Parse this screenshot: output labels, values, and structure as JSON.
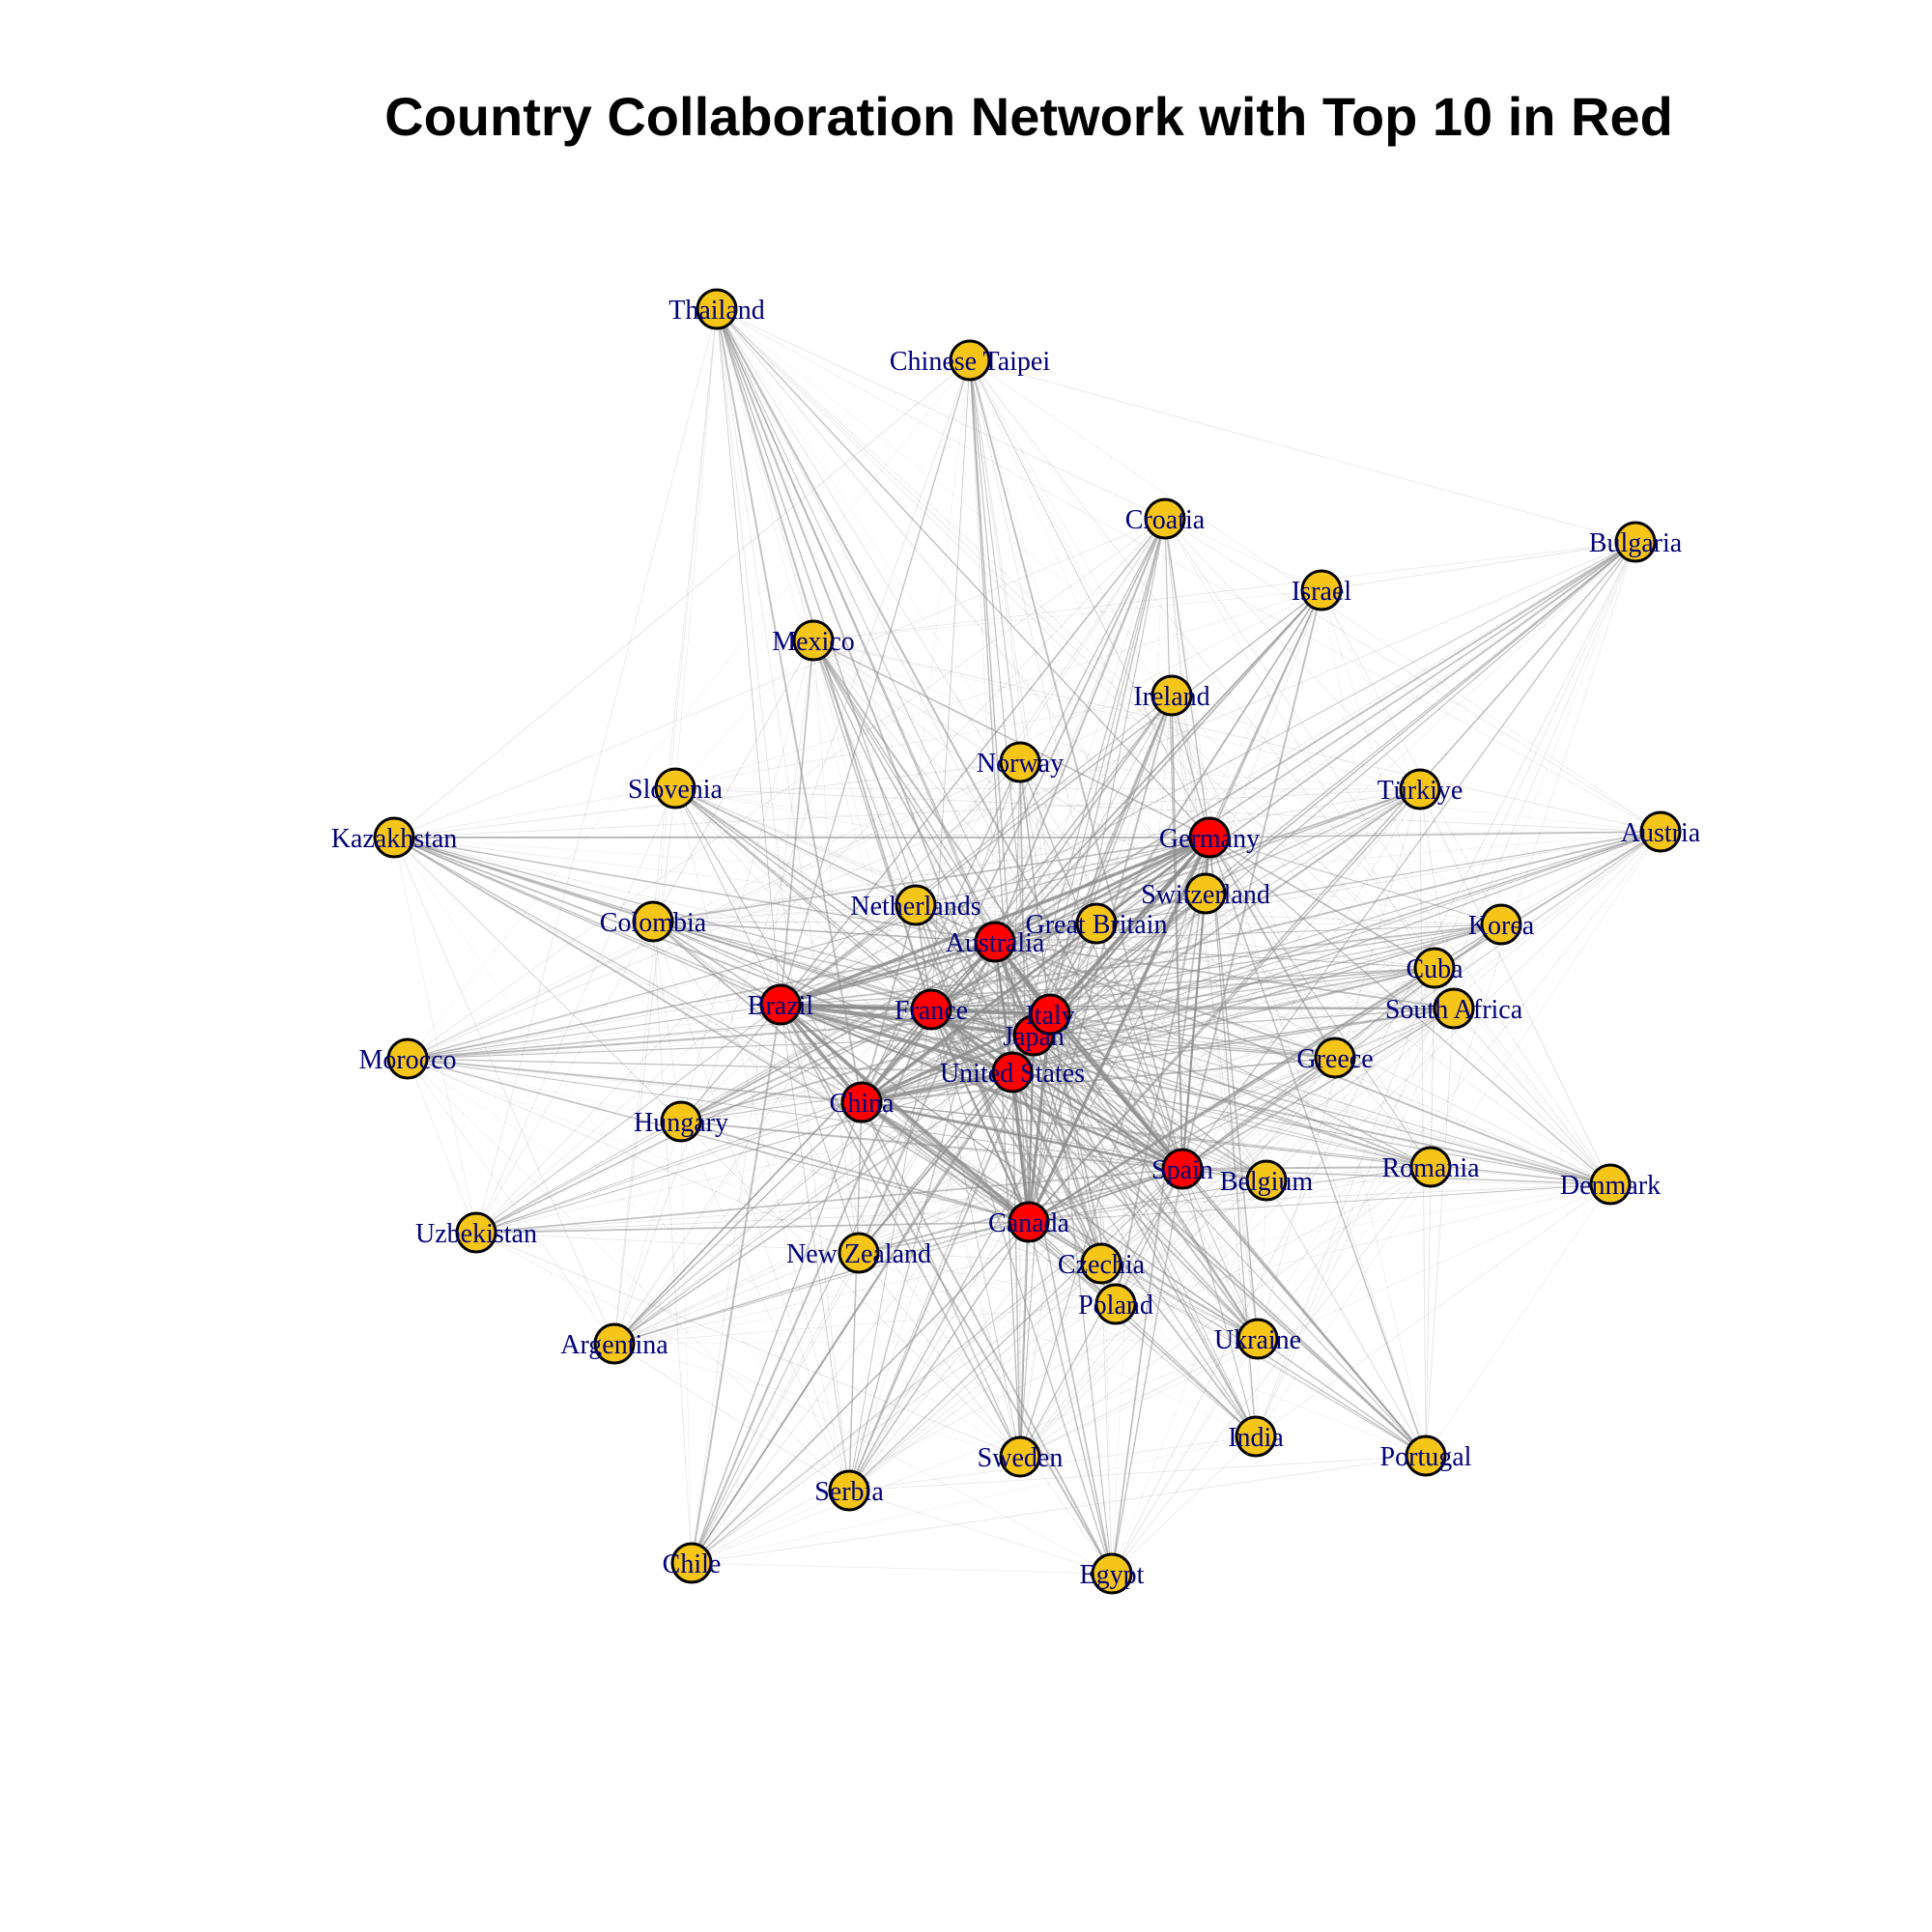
{
  "title": "Country Collaboration Network with Top 10 in Red",
  "colors": {
    "top10_node": "#ff0000",
    "other_node": "#f5c518",
    "node_border": "#000000",
    "edge": "#8c8c8c",
    "label": "#00007a"
  },
  "top10": [
    "United States",
    "China",
    "Italy",
    "Germany",
    "France",
    "Spain",
    "Japan",
    "Canada",
    "Brazil",
    "Australia"
  ],
  "nodes": [
    {
      "id": "United States",
      "label": "United States"
    },
    {
      "id": "Japan",
      "label": "Japan"
    },
    {
      "id": "Italy",
      "label": "Italy"
    },
    {
      "id": "France",
      "label": "France"
    },
    {
      "id": "Brazil",
      "label": "Brazil"
    },
    {
      "id": "China",
      "label": "China"
    },
    {
      "id": "Australia",
      "label": "Australia"
    },
    {
      "id": "Germany",
      "label": "Germany"
    },
    {
      "id": "Spain",
      "label": "Spain"
    },
    {
      "id": "Canada",
      "label": "Canada"
    },
    {
      "id": "Thailand",
      "label": "Thailand"
    },
    {
      "id": "Chinese Taipei",
      "label": "Chinese Taipei"
    },
    {
      "id": "Croatia",
      "label": "Croatia"
    },
    {
      "id": "Bulgaria",
      "label": "Bulgaria"
    },
    {
      "id": "Israel",
      "label": "Israel"
    },
    {
      "id": "Mexico",
      "label": "Mexico"
    },
    {
      "id": "Ireland",
      "label": "Ireland"
    },
    {
      "id": "Norway",
      "label": "Norway"
    },
    {
      "id": "Slovenia",
      "label": "Slovenia"
    },
    {
      "id": "Türkiye",
      "label": "Türkiye"
    },
    {
      "id": "Kazakhstan",
      "label": "Kazakhstan"
    },
    {
      "id": "Austria",
      "label": "Austria"
    },
    {
      "id": "Switzerland",
      "label": "Switzerland"
    },
    {
      "id": "Netherlands",
      "label": "Netherlands"
    },
    {
      "id": "Great Britain",
      "label": "Great Britain"
    },
    {
      "id": "Colombia",
      "label": "Colombia"
    },
    {
      "id": "Korea",
      "label": "Korea"
    },
    {
      "id": "Cuba",
      "label": "Cuba"
    },
    {
      "id": "South Africa",
      "label": "South Africa"
    },
    {
      "id": "Morocco",
      "label": "Morocco"
    },
    {
      "id": "Greece",
      "label": "Greece"
    },
    {
      "id": "Hungary",
      "label": "Hungary"
    },
    {
      "id": "Romania",
      "label": "Romania"
    },
    {
      "id": "Belgium",
      "label": "Belgium"
    },
    {
      "id": "Denmark",
      "label": "Denmark"
    },
    {
      "id": "Uzbekistan",
      "label": "Uzbekistan"
    },
    {
      "id": "New Zealand",
      "label": "New Zealand"
    },
    {
      "id": "Czechia",
      "label": "Czechia"
    },
    {
      "id": "Poland",
      "label": "Poland"
    },
    {
      "id": "Argentina",
      "label": "Argentina"
    },
    {
      "id": "Ukraine",
      "label": "Ukraine"
    },
    {
      "id": "India",
      "label": "India"
    },
    {
      "id": "Portugal",
      "label": "Portugal"
    },
    {
      "id": "Sweden",
      "label": "Sweden"
    },
    {
      "id": "Serbia",
      "label": "Serbia"
    },
    {
      "id": "Chile",
      "label": "Chile"
    },
    {
      "id": "Egypt",
      "label": "Egypt"
    }
  ]
}
